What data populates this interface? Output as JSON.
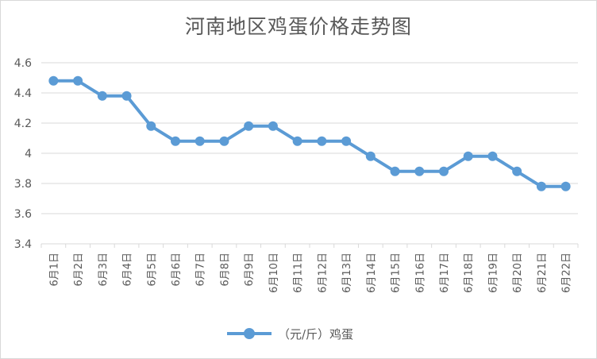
{
  "chart_data": {
    "type": "line",
    "title": "河南地区鸡蛋价格走势图",
    "categories": [
      "6月1日",
      "6月2日",
      "6月3日",
      "6月4日",
      "6月5日",
      "6月6日",
      "6月7日",
      "6月8日",
      "6月9日",
      "6月10日",
      "6月11日",
      "6月12日",
      "6月13日",
      "6月14日",
      "6月15日",
      "6月16日",
      "6月17日",
      "6月18日",
      "6月19日",
      "6月20日",
      "6月21日",
      "6月22日"
    ],
    "series": [
      {
        "name": "（元/斤）鸡蛋",
        "values": [
          4.48,
          4.48,
          4.38,
          4.38,
          4.18,
          4.08,
          4.08,
          4.08,
          4.18,
          4.18,
          4.08,
          4.08,
          4.08,
          3.98,
          3.88,
          3.88,
          3.88,
          3.98,
          3.98,
          3.88,
          3.78,
          3.78
        ],
        "color": "#5b9bd5"
      }
    ],
    "yticks": [
      "3.4",
      "3.6",
      "3.8",
      "4",
      "4.2",
      "4.4",
      "4.6"
    ],
    "ylim": [
      3.4,
      4.6
    ],
    "grid": true,
    "legend": "bottom"
  }
}
